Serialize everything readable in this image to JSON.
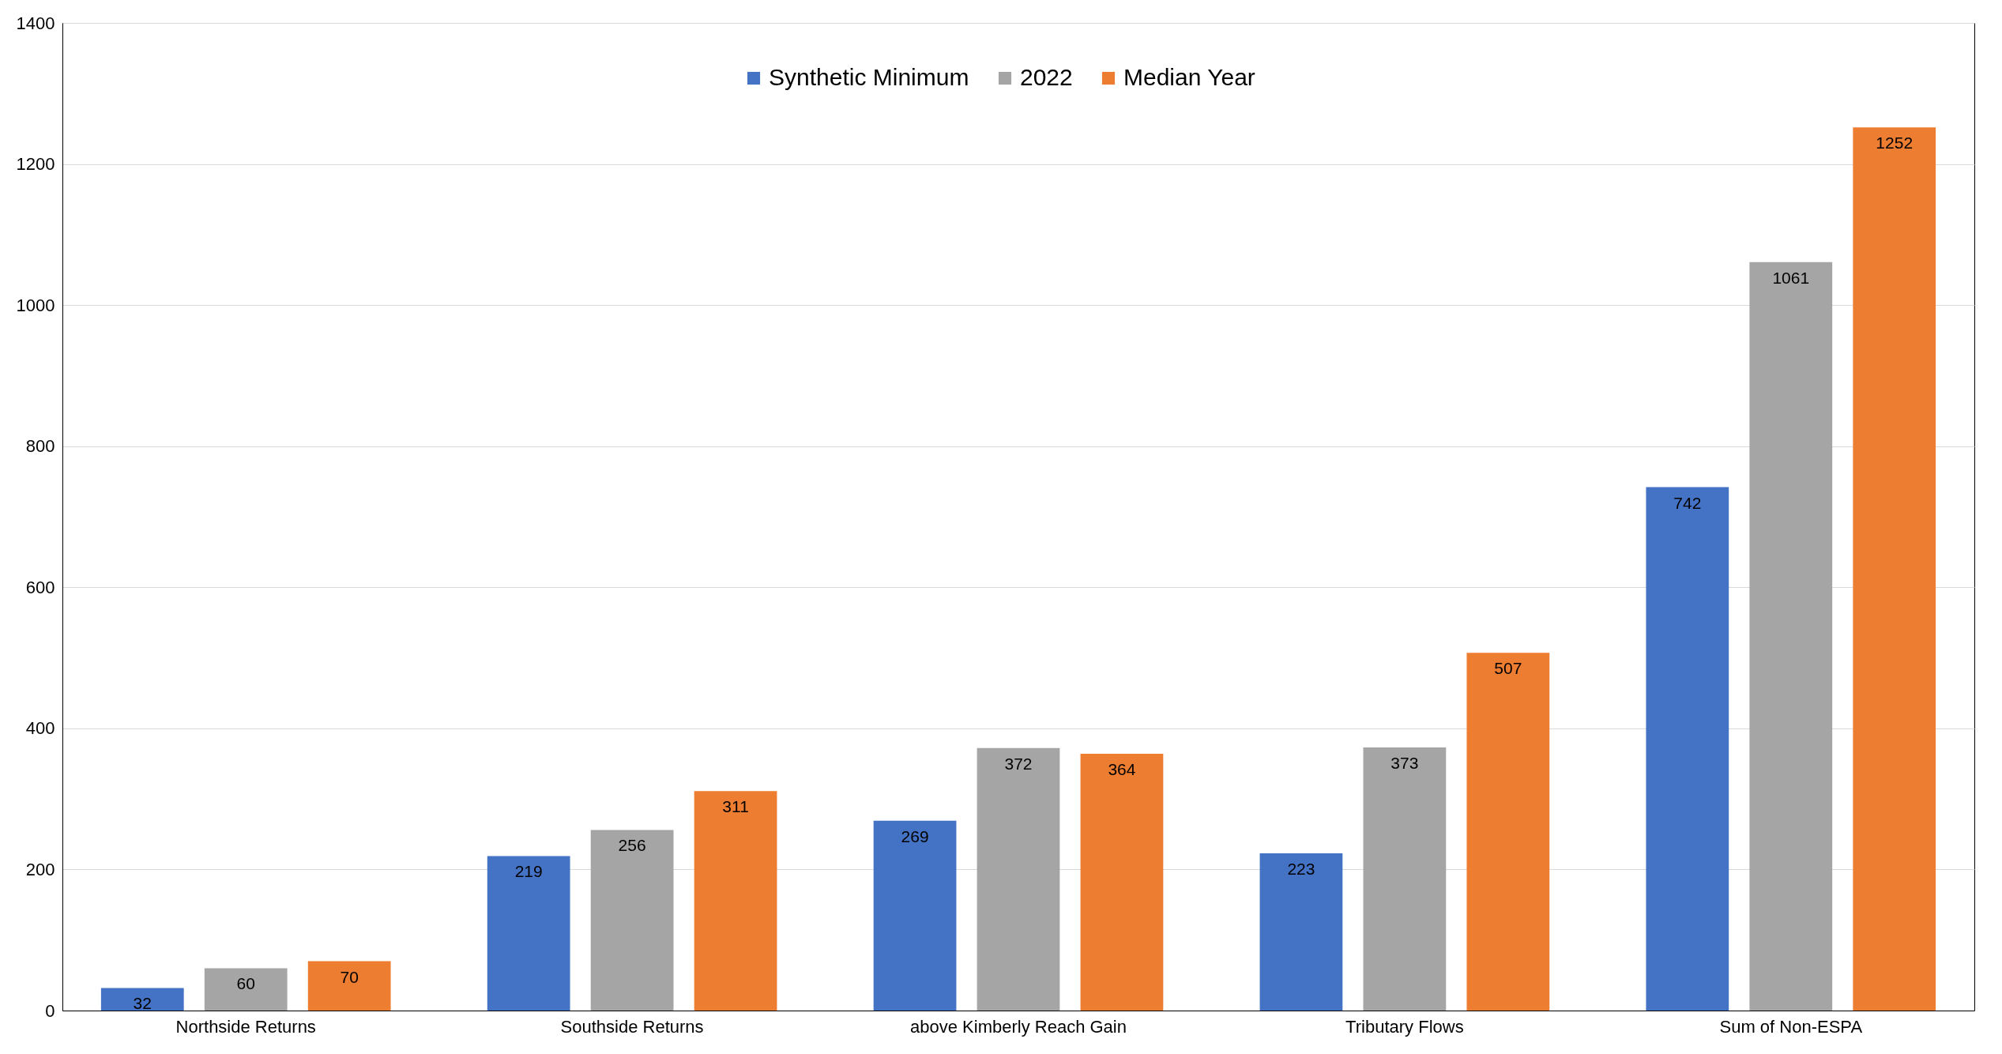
{
  "chart_data": {
    "type": "bar",
    "categories": [
      "Northside Returns",
      "Southside Returns",
      "above Kimberly Reach Gain",
      "Tributary Flows",
      "Sum of Non-ESPA"
    ],
    "series": [
      {
        "name": "Synthetic Minimum",
        "color": "#4472c4",
        "values": [
          32,
          219,
          269,
          223,
          742
        ]
      },
      {
        "name": "2022",
        "color": "#a5a5a5",
        "values": [
          60,
          256,
          372,
          373,
          1061
        ]
      },
      {
        "name": "Median Year",
        "color": "#ed7d31",
        "values": [
          70,
          311,
          364,
          507,
          1252
        ]
      }
    ],
    "ylim": [
      0,
      1400
    ],
    "yticks": [
      0,
      200,
      400,
      600,
      800,
      1000,
      1200,
      1400
    ],
    "grid": "y",
    "legend": "top",
    "data_labels": true
  }
}
